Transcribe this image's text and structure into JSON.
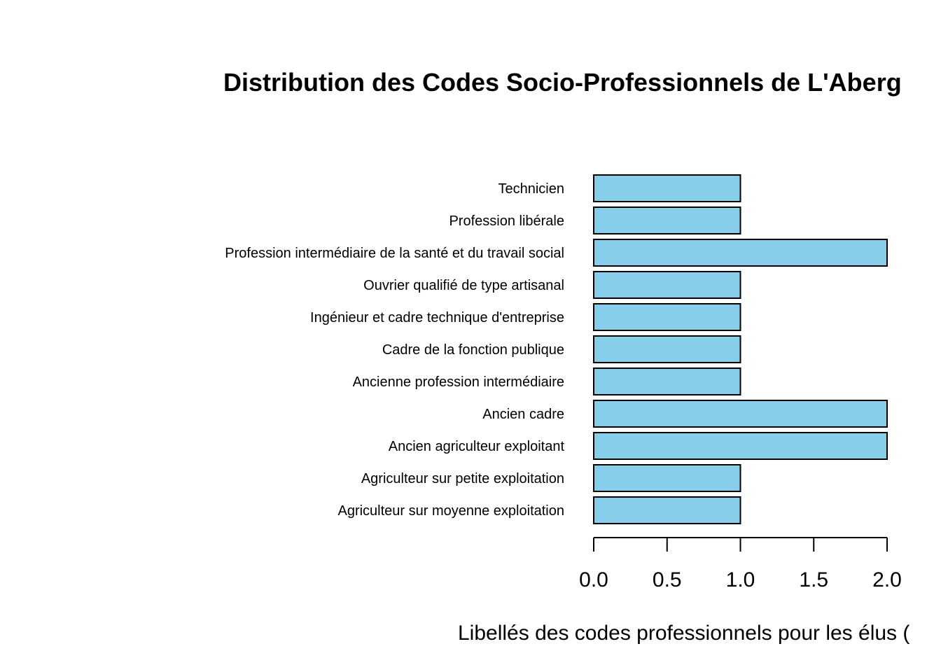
{
  "chart_data": {
    "type": "bar",
    "orientation": "horizontal",
    "title": "Distribution des Codes Socio-Professionnels de L'Aberg",
    "xlabel": "Libellés des codes professionnels pour les élus (",
    "ylabel": "",
    "categories": [
      "Agriculteur sur moyenne exploitation",
      "Agriculteur sur petite exploitation",
      "Ancien agriculteur exploitant",
      "Ancien cadre",
      "Ancienne profession intermédiaire",
      "Cadre de la fonction publique",
      "Ingénieur et cadre technique d'entreprise",
      "Ouvrier qualifié de type artisanal",
      "Profession intermédiaire de la santé et du travail social",
      "Profession libérale",
      "Technicien"
    ],
    "values": [
      1,
      1,
      2,
      2,
      1,
      1,
      1,
      1,
      2,
      1,
      1
    ],
    "xlim": [
      0,
      2
    ],
    "xticks": [
      "0.0",
      "0.5",
      "1.0",
      "1.5",
      "2.0"
    ],
    "bar_color": "#87CEEB",
    "bar_border_color": "#000000",
    "grid": false,
    "legend": "none"
  }
}
